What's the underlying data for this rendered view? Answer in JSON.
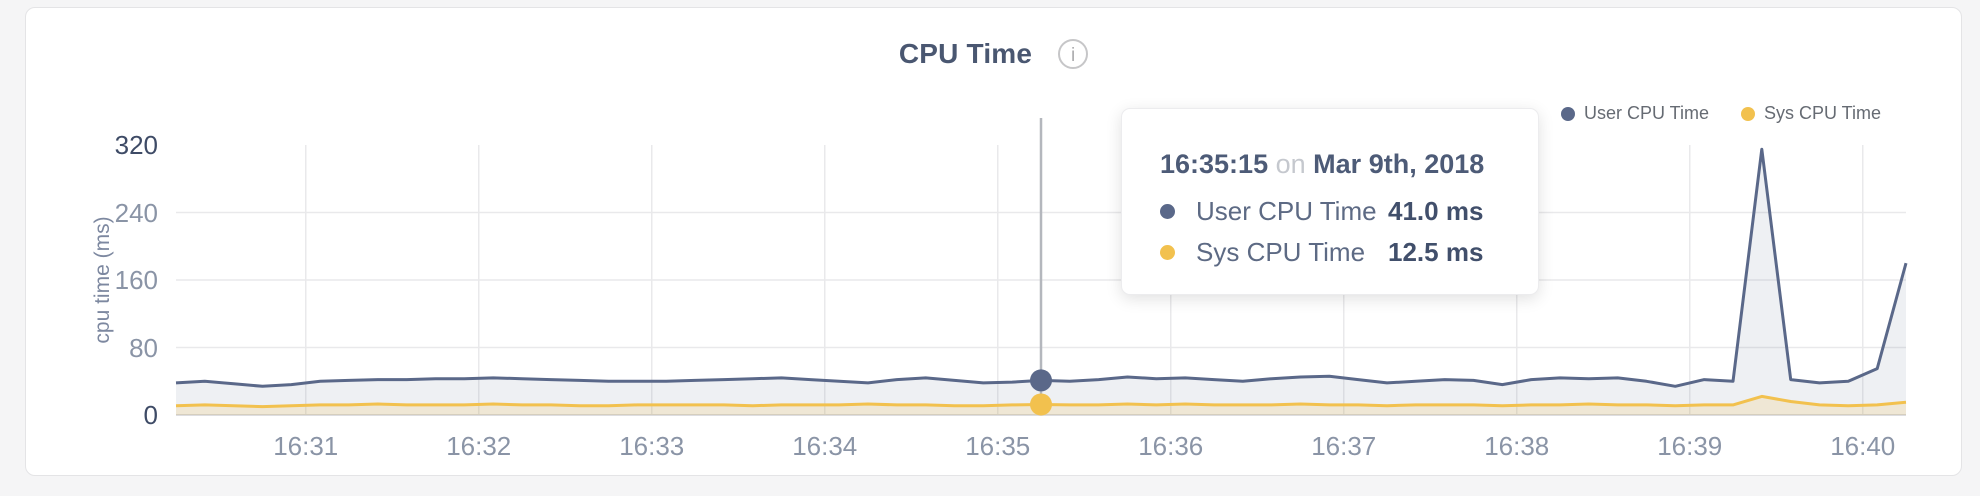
{
  "header": {
    "title": "CPU Time",
    "info_icon_glyph": "i"
  },
  "legend": {
    "items": [
      {
        "label": "User CPU Time",
        "color": "#5a6889"
      },
      {
        "label": "Sys CPU Time",
        "color": "#f2c14e"
      }
    ]
  },
  "tooltip": {
    "time": "16:35:15",
    "conjunction": "on",
    "date": "Mar 9th, 2018",
    "rows": [
      {
        "label": "User CPU Time",
        "value": "41.0 ms",
        "color": "#5a6889"
      },
      {
        "label": "Sys CPU Time",
        "value": "12.5 ms",
        "color": "#f2c14e"
      }
    ]
  },
  "chart_data": {
    "type": "area",
    "title": "CPU Time",
    "xlabel": "",
    "ylabel": "cpu time (ms)",
    "ylim": [
      0,
      320
    ],
    "x_start": "16:30:15",
    "x_end": "16:40:15",
    "interval_seconds": 10,
    "x_ticks": [
      "16:31",
      "16:32",
      "16:33",
      "16:34",
      "16:35",
      "16:36",
      "16:37",
      "16:38",
      "16:39",
      "16:40"
    ],
    "y_ticks": [
      {
        "label": "0",
        "v": 0,
        "strong": true
      },
      {
        "label": "80",
        "v": 80,
        "strong": false
      },
      {
        "label": "160",
        "v": 160,
        "strong": false
      },
      {
        "label": "240",
        "v": 240,
        "strong": false
      },
      {
        "label": "320",
        "v": 320,
        "strong": true
      }
    ],
    "grid": true,
    "legend_position": "top-right",
    "series": [
      {
        "name": "User CPU Time",
        "color": "#5a6889",
        "fill": "rgba(90,104,137,0.10)",
        "values": [
          38,
          40,
          37,
          34,
          36,
          40,
          41,
          42,
          42,
          43,
          43,
          44,
          43,
          42,
          41,
          40,
          40,
          40,
          41,
          42,
          43,
          44,
          42,
          40,
          38,
          42,
          44,
          41,
          38,
          39,
          41,
          40,
          42,
          45,
          43,
          44,
          42,
          40,
          43,
          45,
          46,
          42,
          38,
          40,
          42,
          41,
          36,
          42,
          44,
          43,
          44,
          40,
          34,
          42,
          40,
          315,
          42,
          38,
          40,
          55,
          180
        ]
      },
      {
        "name": "Sys CPU Time",
        "color": "#f2c14e",
        "fill": "rgba(242,193,78,0.18)",
        "values": [
          11,
          12,
          11,
          10,
          11,
          12,
          12,
          13,
          12,
          12,
          12,
          13,
          12,
          12,
          11,
          11,
          12,
          12,
          12,
          12,
          11,
          12,
          12,
          12,
          13,
          12,
          12,
          11,
          11,
          12,
          12.5,
          12,
          12,
          13,
          12,
          13,
          12,
          12,
          12,
          13,
          12,
          12,
          11,
          12,
          12,
          12,
          11,
          12,
          12,
          13,
          12,
          12,
          11,
          12,
          12,
          22,
          16,
          12,
          11,
          12,
          15
        ]
      }
    ],
    "hover": {
      "time": "16:35:15",
      "user": 41.0,
      "sys": 12.5
    },
    "colors": {
      "grid": "#e9e9eb",
      "axis_line": "#dddde0",
      "hover_line": "#b4b7bd",
      "tick_normal": "#8a94a6",
      "tick_strong": "#3e4b66"
    }
  }
}
